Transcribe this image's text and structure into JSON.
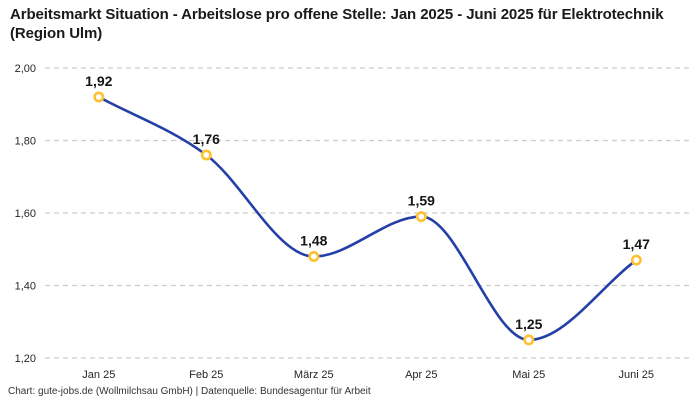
{
  "title": "Arbeitsmarkt Situation - Arbeitslose pro offene Stelle: Jan 2025 - Juni 2025 für Elektrotechnik (Region Ulm)",
  "footer": "Chart: gute-jobs.de (Wollmilchsau GmbH) | Datenquelle: Bundesagentur für Arbeit",
  "chart_data": {
    "type": "line",
    "title": "Arbeitsmarkt Situation - Arbeitslose pro offene Stelle: Jan 2025 - Juni 2025 für Elektrotechnik (Region Ulm)",
    "categories": [
      "Jan 25",
      "Feb 25",
      "März 25",
      "Apr 25",
      "Mai 25",
      "Juni 25"
    ],
    "values": [
      1.92,
      1.76,
      1.48,
      1.59,
      1.25,
      1.47
    ],
    "value_labels": [
      "1,92",
      "1,76",
      "1,48",
      "1,59",
      "1,25",
      "1,47"
    ],
    "xlabel": "",
    "ylabel": "",
    "ylim": [
      1.2,
      2.0
    ],
    "yticks": [
      {
        "value": 2.0,
        "label": "2,00"
      },
      {
        "value": 1.8,
        "label": "1,80"
      },
      {
        "value": 1.6,
        "label": "1,60"
      },
      {
        "value": 1.4,
        "label": "1,40"
      },
      {
        "value": 1.2,
        "label": "1,20"
      }
    ],
    "grid": "dashed-horizontal",
    "legend": "none",
    "curve": "monotone",
    "colors": {
      "line": "#2440a8",
      "marker_stroke": "#fdc132",
      "marker_fill": "#ffffff",
      "grid": "#cccccc",
      "point_label": "#161616",
      "tick_label": "#262626"
    }
  }
}
